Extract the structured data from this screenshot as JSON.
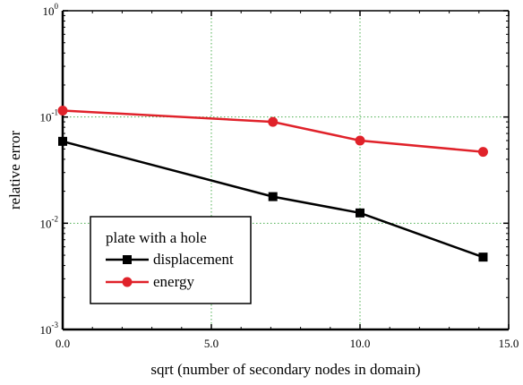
{
  "chart_data": {
    "type": "line",
    "title": "",
    "xlabel": "sqrt (number of secondary nodes in domain)",
    "ylabel": "relative error",
    "x_scale": "linear",
    "y_scale": "log",
    "xlim": [
      0,
      15
    ],
    "ylim": [
      0.001,
      1
    ],
    "x_ticks": [
      0,
      5,
      10,
      15
    ],
    "x_tick_labels": [
      "0.0",
      "5.0",
      "10.0",
      "15.0"
    ],
    "y_ticks": [
      0.001,
      0.01,
      0.1,
      1
    ],
    "y_tick_labels": [
      {
        "base": "10",
        "exp": "-3"
      },
      {
        "base": "10",
        "exp": "-2"
      },
      {
        "base": "10",
        "exp": "-1"
      },
      {
        "base": "10",
        "exp": "0"
      }
    ],
    "grid": {
      "x": true,
      "y": true,
      "style": "dotted",
      "color": "#4caf50"
    },
    "legend": {
      "title": "plate with a hole",
      "placement": "lower-left"
    },
    "series": [
      {
        "name": "displacement",
        "color": "#000000",
        "marker": "square",
        "x": [
          0,
          7.07,
          10,
          14.14
        ],
        "y": [
          0.059,
          0.0178,
          0.0125,
          0.0048
        ]
      },
      {
        "name": "energy",
        "color": "#e0222a",
        "marker": "circle",
        "x": [
          0,
          7.07,
          10,
          14.14
        ],
        "y": [
          0.115,
          0.09,
          0.06,
          0.047
        ]
      }
    ]
  }
}
